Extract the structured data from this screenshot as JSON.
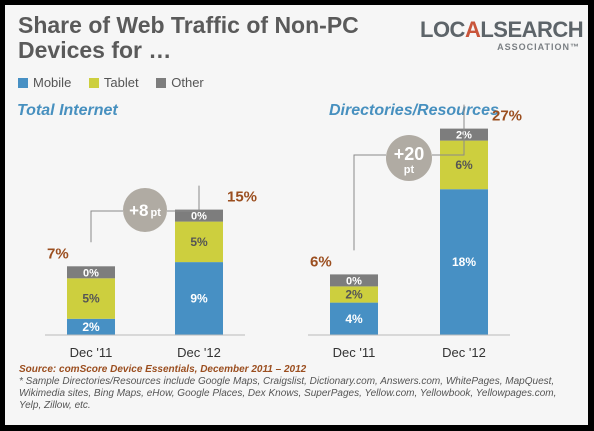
{
  "title": "Share of Web Traffic of Non-PC Devices for …",
  "logo": {
    "main_a": "LOC",
    "main_accent": "A",
    "main_b": "LSEARCH",
    "sub": "ASSOCIATION™"
  },
  "colors": {
    "mobile": "#4790c4",
    "tablet": "#cdcf3e",
    "other": "#7d7d7d",
    "total": "#9b4e1f",
    "bubble": "#b0aba3",
    "panel_title": "#4790bf"
  },
  "chart_data": [
    {
      "type": "bar",
      "stacked": true,
      "title": "Total Internet",
      "categories": [
        "Dec '11",
        "Dec '12"
      ],
      "series": [
        {
          "name": "Mobile",
          "values": [
            2,
            9
          ],
          "labels": [
            "2%",
            "9%"
          ]
        },
        {
          "name": "Tablet",
          "values": [
            5,
            5
          ],
          "labels": [
            "5%",
            "5%"
          ]
        },
        {
          "name": "Other",
          "values": [
            0,
            0
          ],
          "labels": [
            "0%",
            "0%"
          ]
        }
      ],
      "totals": [
        "7%",
        "15%"
      ],
      "change": {
        "value": "+8",
        "unit": "pt"
      },
      "ylim": [
        0,
        15
      ]
    },
    {
      "type": "bar",
      "stacked": true,
      "title": "Directories/Resources",
      "categories": [
        "Dec '11",
        "Dec '12"
      ],
      "series": [
        {
          "name": "Mobile",
          "values": [
            4,
            18
          ],
          "labels": [
            "4%",
            "18%"
          ]
        },
        {
          "name": "Tablet",
          "values": [
            2,
            6
          ],
          "labels": [
            "2%",
            "6%"
          ]
        },
        {
          "name": "Other",
          "values": [
            0,
            2
          ],
          "labels": [
            "0%",
            "2%"
          ]
        }
      ],
      "totals": [
        "6%",
        "27%"
      ],
      "change": {
        "value": "+20",
        "unit": "pt"
      },
      "ylim": [
        0,
        27
      ]
    }
  ],
  "legend": [
    {
      "name": "Mobile",
      "color": "#4790c4"
    },
    {
      "name": "Tablet",
      "color": "#cdcf3e"
    },
    {
      "name": "Other",
      "color": "#7d7d7d"
    }
  ],
  "footer": {
    "source": "Source: comScore Device Essentials, December 2011 – 2012",
    "note": "* Sample Directories/Resources include Google Maps, Craigslist, Dictionary.com, Answers.com, WhitePages, MapQuest, Wikimedia sites, Bing Maps, eHow, Google Places, Dex Knows, SuperPages, Yellow.com, Yellowbook, Yellowpages.com, Yelp, Zillow, etc."
  }
}
